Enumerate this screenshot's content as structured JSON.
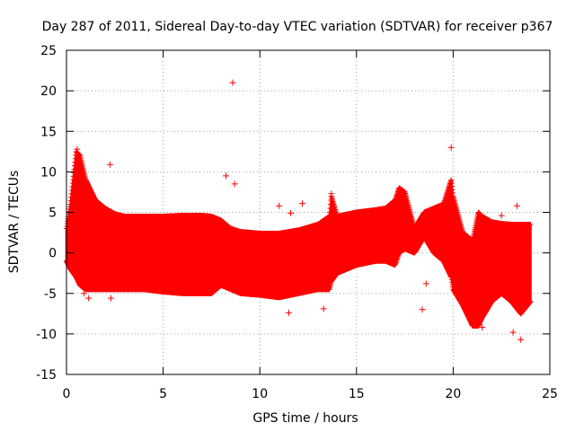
{
  "chart_data": {
    "type": "scatter",
    "title": "Day 287 of 2011, Sidereal Day-to-day VTEC variation (SDTVAR) for receiver p367",
    "xlabel": "GPS time / hours",
    "ylabel": "SDTVAR / TECUs",
    "xlim": [
      0,
      25
    ],
    "ylim": [
      -15,
      25
    ],
    "xticks": [
      "0",
      "5",
      "10",
      "15",
      "20",
      "25"
    ],
    "yticks": [
      "-15",
      "-10",
      "-5",
      "0",
      "5",
      "10",
      "15",
      "20",
      "25"
    ],
    "grid": true,
    "marker": "+",
    "series": [
      {
        "name": "SDTVAR",
        "color": "#ff0000",
        "envelope_hours": [
          0.0,
          0.2,
          0.5,
          0.7,
          1.0,
          1.5,
          2.0,
          2.5,
          3.0,
          4.0,
          5.0,
          6.0,
          7.0,
          7.5,
          8.0,
          8.5,
          9.0,
          10.0,
          11.0,
          12.0,
          13.0,
          13.6,
          13.7,
          14.0,
          15.0,
          16.0,
          16.5,
          17.0,
          17.2,
          17.5,
          18.0,
          18.5,
          19.0,
          19.5,
          19.9,
          20.0,
          20.5,
          21.0,
          21.3,
          21.5,
          22.0,
          22.5,
          23.0,
          23.5,
          24.0
        ],
        "envelope_upper": [
          3.0,
          6.0,
          12.5,
          12.0,
          9.0,
          6.5,
          5.5,
          4.8,
          4.5,
          4.5,
          4.5,
          4.6,
          4.6,
          4.5,
          4.0,
          3.0,
          2.6,
          2.4,
          2.4,
          2.8,
          3.5,
          4.5,
          7.0,
          4.5,
          5.0,
          5.3,
          5.5,
          6.5,
          8.0,
          7.5,
          3.0,
          5.0,
          5.5,
          6.0,
          9.0,
          7.0,
          2.5,
          1.5,
          5.0,
          4.5,
          3.8,
          3.6,
          3.5,
          3.5,
          3.5
        ],
        "envelope_lower": [
          -1.0,
          -2.0,
          -3.0,
          -4.0,
          -4.5,
          -4.5,
          -4.5,
          -4.5,
          -4.5,
          -4.5,
          -4.8,
          -5.0,
          -5.0,
          -5.0,
          -4.0,
          -4.5,
          -5.0,
          -5.2,
          -5.5,
          -5.0,
          -4.5,
          -4.5,
          -3.5,
          -2.5,
          -1.5,
          -1.0,
          -1.0,
          -1.5,
          0.0,
          0.5,
          0.0,
          2.0,
          0.0,
          -1.0,
          -3.0,
          -4.5,
          -6.5,
          -9.0,
          -9.0,
          -8.0,
          -6.0,
          -5.0,
          -6.0,
          -7.5,
          -6.0
        ],
        "outliers": [
          [
            0.55,
            12.8
          ],
          [
            2.25,
            10.9
          ],
          [
            8.25,
            9.5
          ],
          [
            8.6,
            21.0
          ],
          [
            8.7,
            8.5
          ],
          [
            11.0,
            5.8
          ],
          [
            11.6,
            4.9
          ],
          [
            12.2,
            6.1
          ],
          [
            13.7,
            7.3
          ],
          [
            0.9,
            -5.0
          ],
          [
            1.15,
            -5.6
          ],
          [
            2.3,
            -5.6
          ],
          [
            11.5,
            -7.4
          ],
          [
            13.3,
            -6.9
          ],
          [
            18.4,
            -7.0
          ],
          [
            18.6,
            -3.8
          ],
          [
            19.9,
            13.0
          ],
          [
            21.5,
            -9.2
          ],
          [
            23.1,
            -9.8
          ],
          [
            23.5,
            -10.7
          ],
          [
            22.5,
            4.6
          ],
          [
            23.3,
            5.8
          ]
        ]
      }
    ]
  }
}
